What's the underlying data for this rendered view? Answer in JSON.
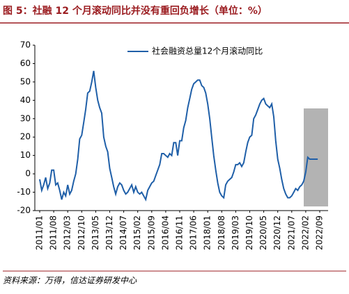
{
  "chart_data": {
    "type": "line",
    "title": "图 5：社融 12 个月滚动同比并没有重回负增长（单位：%）",
    "source": "资料来源：万得，信达证券研发中心",
    "x": [
      "2011/01",
      "2011/02",
      "2011/03",
      "2011/04",
      "2011/05",
      "2011/06",
      "2011/07",
      "2011/08",
      "2011/09",
      "2011/10",
      "2011/11",
      "2011/12",
      "2012/01",
      "2012/02",
      "2012/03",
      "2012/04",
      "2012/05",
      "2012/06",
      "2012/07",
      "2012/08",
      "2012/09",
      "2012/10",
      "2012/11",
      "2012/12",
      "2013/01",
      "2013/02",
      "2013/03",
      "2013/04",
      "2013/05",
      "2013/06",
      "2013/07",
      "2013/08",
      "2013/09",
      "2013/10",
      "2013/11",
      "2013/12",
      "2014/01",
      "2014/02",
      "2014/03",
      "2014/04",
      "2014/05",
      "2014/06",
      "2014/07",
      "2014/08",
      "2014/09",
      "2014/10",
      "2014/11",
      "2014/12",
      "2015/01",
      "2015/02",
      "2015/03",
      "2015/04",
      "2015/05",
      "2015/06",
      "2015/07",
      "2015/08",
      "2015/09",
      "2015/10",
      "2015/11",
      "2015/12",
      "2016/01",
      "2016/02",
      "2016/03",
      "2016/04",
      "2016/05",
      "2016/06",
      "2016/07",
      "2016/08",
      "2016/09",
      "2016/10",
      "2016/11",
      "2016/12",
      "2017/01",
      "2017/02",
      "2017/03",
      "2017/04",
      "2017/05",
      "2017/06",
      "2017/07",
      "2017/08",
      "2017/09",
      "2017/10",
      "2017/11",
      "2017/12",
      "2018/01",
      "2018/02",
      "2018/03",
      "2018/04",
      "2018/05",
      "2018/06",
      "2018/07",
      "2018/08",
      "2018/09",
      "2018/10",
      "2018/11",
      "2018/12",
      "2019/01",
      "2019/02",
      "2019/03",
      "2019/04",
      "2019/05",
      "2019/06",
      "2019/07",
      "2019/08",
      "2019/09",
      "2019/10",
      "2019/11",
      "2019/12",
      "2020/01",
      "2020/02",
      "2020/03",
      "2020/04",
      "2020/05",
      "2020/06",
      "2020/07",
      "2020/08",
      "2020/09",
      "2020/10",
      "2020/11",
      "2020/12",
      "2021/01",
      "2021/02",
      "2021/03",
      "2021/04",
      "2021/05",
      "2021/06",
      "2021/07",
      "2021/08",
      "2021/09",
      "2021/10",
      "2021/11",
      "2021/12",
      "2022/01",
      "2022/02",
      "2022/03",
      "2022/04",
      "2022/05",
      "2022/06",
      "2022/07",
      "2022/08",
      "2022/09"
    ],
    "series": [
      {
        "name": "社会融资总量12个月滚动同比",
        "color": "#1f5fa8",
        "values": [
          -3,
          -9,
          -6,
          -2,
          -8,
          -5,
          2,
          2,
          -6,
          -5,
          -9,
          -14,
          -10,
          -12,
          -6,
          -11,
          -9,
          -4,
          0,
          8,
          19,
          21,
          28,
          35,
          44,
          45,
          50,
          56,
          47,
          40,
          36,
          33,
          20,
          15,
          12,
          3,
          -2,
          -7,
          -11,
          -7,
          -5,
          -6,
          -9,
          -11,
          -10,
          -8,
          -6,
          -10,
          -7,
          -10,
          -11,
          -10,
          -12,
          -14,
          -9,
          -7,
          -5,
          -4,
          -1,
          2,
          5,
          11,
          11,
          10,
          9,
          11,
          10,
          17,
          17,
          10,
          18,
          18,
          25,
          29,
          36,
          41,
          46,
          49,
          50,
          51,
          51,
          48,
          47,
          44,
          38,
          30,
          20,
          10,
          2,
          -5,
          -10,
          -12,
          -13,
          -6,
          -4,
          -3,
          -2,
          1,
          5,
          5,
          6,
          4,
          6,
          12,
          17,
          20,
          21,
          30,
          32,
          35,
          38,
          40,
          41,
          38,
          37,
          36,
          38,
          31,
          18,
          8,
          3,
          -3,
          -8,
          -11,
          -13,
          -13,
          -12,
          -10,
          -8,
          -9,
          -7,
          -6,
          -4,
          1,
          9,
          8,
          8,
          8,
          8,
          8,
          null
        ]
      }
    ],
    "ylim": [
      -20,
      70
    ],
    "yticks": [
      -20,
      -10,
      0,
      10,
      20,
      30,
      40,
      50,
      60,
      70
    ],
    "xtick_every": 7
  }
}
